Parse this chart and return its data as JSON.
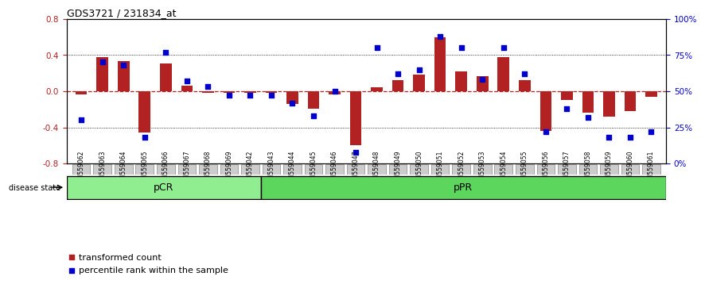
{
  "title": "GDS3721 / 231834_at",
  "samples": [
    "GSM559062",
    "GSM559063",
    "GSM559064",
    "GSM559065",
    "GSM559066",
    "GSM559067",
    "GSM559068",
    "GSM559069",
    "GSM559042",
    "GSM559043",
    "GSM559044",
    "GSM559045",
    "GSM559046",
    "GSM559047",
    "GSM559048",
    "GSM559049",
    "GSM559050",
    "GSM559051",
    "GSM559052",
    "GSM559053",
    "GSM559054",
    "GSM559055",
    "GSM559056",
    "GSM559057",
    "GSM559058",
    "GSM559059",
    "GSM559060",
    "GSM559061"
  ],
  "bar_values": [
    -0.04,
    0.38,
    0.33,
    -0.46,
    0.31,
    0.06,
    -0.02,
    -0.02,
    -0.02,
    -0.02,
    -0.14,
    -0.19,
    -0.04,
    -0.6,
    0.04,
    0.12,
    0.18,
    0.6,
    0.22,
    0.17,
    0.38,
    0.12,
    -0.44,
    -0.1,
    -0.24,
    -0.28,
    -0.22,
    -0.06
  ],
  "dot_values_pct": [
    30,
    70,
    68,
    18,
    77,
    57,
    53,
    47,
    47,
    47,
    42,
    33,
    50,
    8,
    80,
    62,
    65,
    88,
    80,
    58,
    80,
    62,
    22,
    38,
    32,
    18,
    18,
    22
  ],
  "pcr_count": 9,
  "ppr_count": 19,
  "bar_color": "#b22222",
  "dot_color": "#0000cc",
  "pCR_color": "#90ee90",
  "pPR_color": "#5cd65c",
  "ylim": [
    -0.8,
    0.8
  ],
  "yticks_left": [
    -0.8,
    -0.4,
    0.0,
    0.4,
    0.8
  ],
  "yticks_right_pct": [
    0,
    25,
    50,
    75,
    100
  ],
  "background_color": "#ffffff",
  "legend_transformed": "transformed count",
  "legend_percentile": "percentile rank within the sample",
  "label_disease_state": "disease state",
  "label_pCR": "pCR",
  "label_pPR": "pPR"
}
